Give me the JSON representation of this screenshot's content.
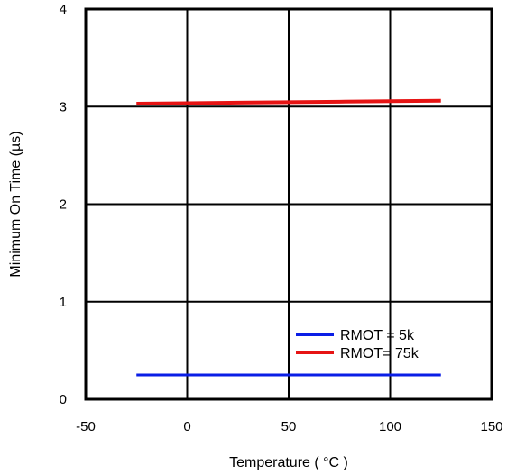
{
  "chart_data": {
    "type": "line",
    "title": "",
    "xlabel": "Temperature ( °C )",
    "ylabel": "Minimum On Time (µs)",
    "xlim": [
      -50,
      150
    ],
    "ylim": [
      0,
      4
    ],
    "x_ticks": [
      "-50",
      "0",
      "50",
      "100",
      "150"
    ],
    "y_ticks": [
      "0",
      "1",
      "2",
      "3",
      "4"
    ],
    "grid": true,
    "legend_position": "bottom-right",
    "series": [
      {
        "name": "RMOT = 5k",
        "color": "#0a1ee6",
        "x": [
          -25,
          0,
          25,
          50,
          75,
          100,
          125
        ],
        "y": [
          0.25,
          0.25,
          0.25,
          0.25,
          0.25,
          0.25,
          0.25
        ]
      },
      {
        "name": "RMOT= 75k",
        "color": "#e61414",
        "x": [
          -25,
          0,
          25,
          50,
          75,
          100,
          125
        ],
        "y": [
          3.03,
          3.035,
          3.04,
          3.045,
          3.05,
          3.055,
          3.06
        ]
      }
    ]
  }
}
